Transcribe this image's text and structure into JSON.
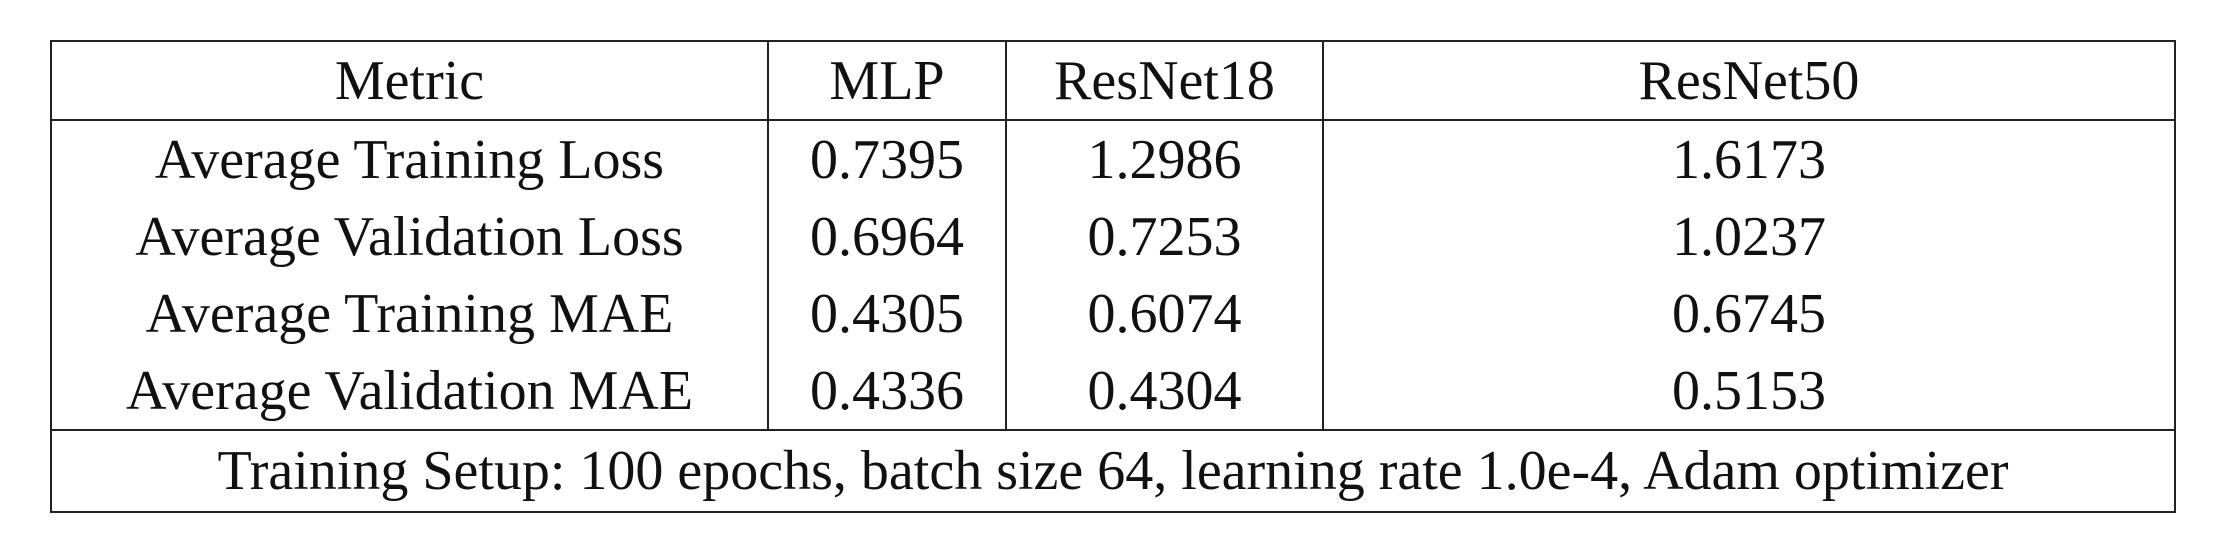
{
  "table": {
    "headers": [
      "Metric",
      "MLP",
      "ResNet18",
      "ResNet50"
    ],
    "rows": [
      {
        "metric": "Average Training Loss",
        "mlp": "0.7395",
        "resnet18": "1.2986",
        "resnet50": "1.6173"
      },
      {
        "metric": "Average Validation Loss",
        "mlp": "0.6964",
        "resnet18": "0.7253",
        "resnet50": "1.0237"
      },
      {
        "metric": "Average Training MAE",
        "mlp": "0.4305",
        "resnet18": "0.6074",
        "resnet50": "0.6745"
      },
      {
        "metric": "Average Validation MAE",
        "mlp": "0.4336",
        "resnet18": "0.4304",
        "resnet50": "0.5153"
      }
    ],
    "footer": "Training Setup: 100 epochs, batch size 64, learning rate 1.0e-4, Adam optimizer"
  }
}
